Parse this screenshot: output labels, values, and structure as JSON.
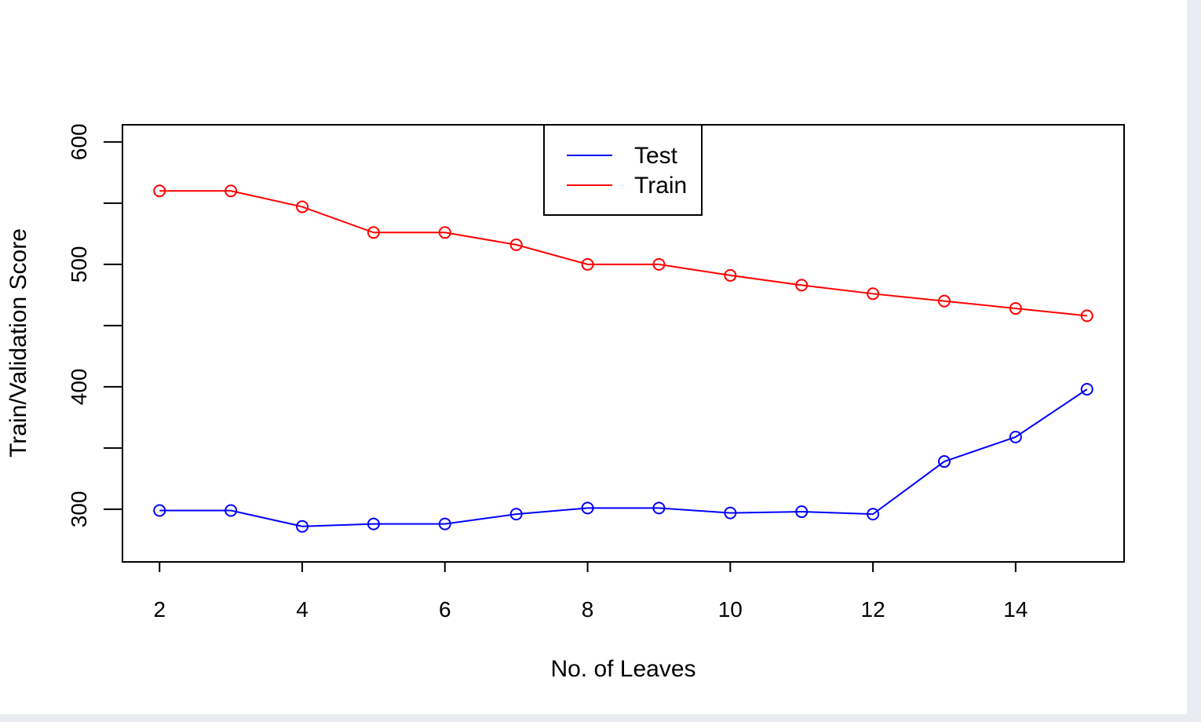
{
  "chart_data": {
    "type": "line",
    "xlabel": "No. of Leaves",
    "ylabel": "Train/Validation Score",
    "xlim": [
      1.48,
      15.52
    ],
    "ylim": [
      257,
      614
    ],
    "x_ticks": [
      2,
      4,
      6,
      8,
      10,
      12,
      14
    ],
    "y_ticks": [
      300,
      400,
      500,
      600
    ],
    "grid": false,
    "legend_position": "top-center",
    "x": [
      2,
      3,
      4,
      5,
      6,
      7,
      8,
      9,
      10,
      11,
      12,
      13,
      14,
      15
    ],
    "series": [
      {
        "name": "Test",
        "color": "#0000ff",
        "values": [
          299,
          299,
          286,
          288,
          288,
          296,
          301,
          301,
          297,
          298,
          296,
          339,
          359,
          398
        ]
      },
      {
        "name": "Train",
        "color": "#ff0000",
        "values": [
          560,
          560,
          547,
          526,
          526,
          516,
          500,
          500,
          491,
          483,
          476,
          470,
          464,
          458
        ]
      }
    ]
  }
}
